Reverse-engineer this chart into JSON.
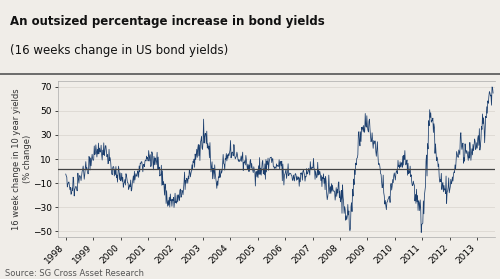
{
  "title_line1": "An outsized percentage increase in bond yields",
  "title_line2": "(16 weeks change in US bond yields)",
  "ylabel": "16 week change in 10 year yields\n(% change)",
  "source": "Source: SG Cross Asset Research",
  "line_color": "#1c3f6e",
  "ref_line_color": "#444444",
  "ref_line_y": 2.0,
  "ylim": [
    -55,
    75
  ],
  "yticks": [
    -50,
    -30,
    -10,
    10,
    30,
    50,
    70
  ],
  "bg_color": "#f0ede8",
  "plot_bg_color": "#f0ede8",
  "title_bg_color": "#f0ede8",
  "grid_color": "#d8d4ce"
}
